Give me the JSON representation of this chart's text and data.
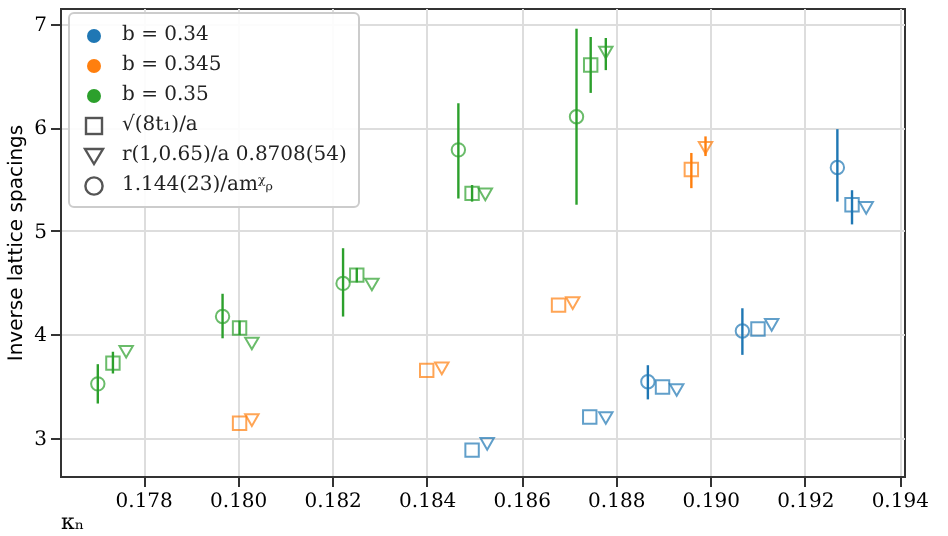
{
  "chart_data": {
    "type": "scatter",
    "xlabel": "κₙ",
    "ylabel": "Inverse lattice spacings",
    "xlim": [
      0.17624,
      0.1941
    ],
    "ylim": [
      2.63,
      7.15
    ],
    "xticks": [
      0.178,
      {
        "value": 0.18,
        "label": "0.180"
      },
      0.182,
      0.184,
      0.186,
      0.188,
      {
        "value": 0.19,
        "label": "0.190"
      },
      0.192,
      0.194
    ],
    "yticks": [
      3,
      4,
      5,
      6,
      7
    ],
    "grid": true,
    "legend": "top left",
    "annotations": [
      "√(8t₁)/a",
      "r(1,0.65)/a 0.8708(54)",
      "1.144(23)/amᵡᵨ"
    ],
    "series": [
      {
        "name": "b = 0.34",
        "color": "#1f77b4",
        "marker": "square",
        "x": [
          0.18496,
          0.18745,
          0.18899,
          0.19101,
          0.193
        ],
        "values": [
          2.88,
          3.2,
          3.49,
          4.05,
          5.25
        ],
        "errors": [
          null,
          null,
          null,
          null,
          [
            5.06,
            5.39
          ]
        ]
      },
      {
        "color": "#1f77b4",
        "marker": "triangle-down",
        "x": [
          0.18528,
          0.18779,
          0.18929,
          0.1913,
          0.1933
        ],
        "values": [
          2.94,
          3.19,
          3.46,
          4.09,
          5.22
        ]
      },
      {
        "color": "#1f77b4",
        "marker": "circle",
        "x": [
          0.18868,
          0.19068,
          0.19269
        ],
        "values": [
          3.54,
          4.03,
          5.61
        ],
        "errors": [
          [
            3.37,
            3.7
          ],
          [
            3.8,
            4.25
          ],
          [
            5.28,
            5.98
          ]
        ]
      },
      {
        "name": "b = 0.345",
        "color": "#ff7f0e",
        "marker": "square",
        "x": [
          0.18004,
          0.184,
          0.18679,
          0.1896
        ],
        "values": [
          3.14,
          3.65,
          4.28,
          5.59
        ],
        "errors": [
          null,
          null,
          null,
          [
            5.41,
            5.75
          ]
        ]
      },
      {
        "color": "#ff7f0e",
        "marker": "triangle-down",
        "x": [
          0.1803,
          0.18432,
          0.18709,
          0.1899
        ],
        "values": [
          3.17,
          3.67,
          4.3,
          5.8
        ],
        "errors": [
          null,
          null,
          null,
          [
            5.72,
            5.91
          ]
        ]
      },
      {
        "name": "b = 0.35",
        "color": "#2ca02c",
        "marker": "square",
        "x": [
          0.17736,
          0.18004,
          0.18252,
          0.18496,
          0.18747
        ],
        "values": [
          3.72,
          4.06,
          4.57,
          5.36,
          6.6
        ],
        "errors": [
          [
            3.62,
            3.83
          ],
          [
            3.99,
            4.13
          ],
          [
            4.5,
            4.64
          ],
          [
            5.28,
            5.44
          ],
          [
            6.33,
            6.87
          ]
        ]
      },
      {
        "color": "#2ca02c",
        "marker": "triangle-down",
        "x": [
          0.17764,
          0.1803,
          0.18284,
          0.18524,
          0.18779
        ],
        "values": [
          3.83,
          3.91,
          4.48,
          5.35,
          6.72
        ],
        "errors": [
          null,
          null,
          null,
          null,
          [
            6.55,
            6.86
          ]
        ]
      },
      {
        "color": "#2ca02c",
        "marker": "circle",
        "x": [
          0.17704,
          0.17968,
          0.18223,
          0.18467,
          0.18717
        ],
        "values": [
          3.52,
          4.17,
          4.49,
          5.78,
          6.1
        ],
        "errors": [
          [
            3.33,
            3.71
          ],
          [
            3.96,
            4.39
          ],
          [
            4.17,
            4.83
          ],
          [
            5.31,
            6.23
          ],
          [
            5.25,
            6.95
          ]
        ]
      }
    ]
  }
}
